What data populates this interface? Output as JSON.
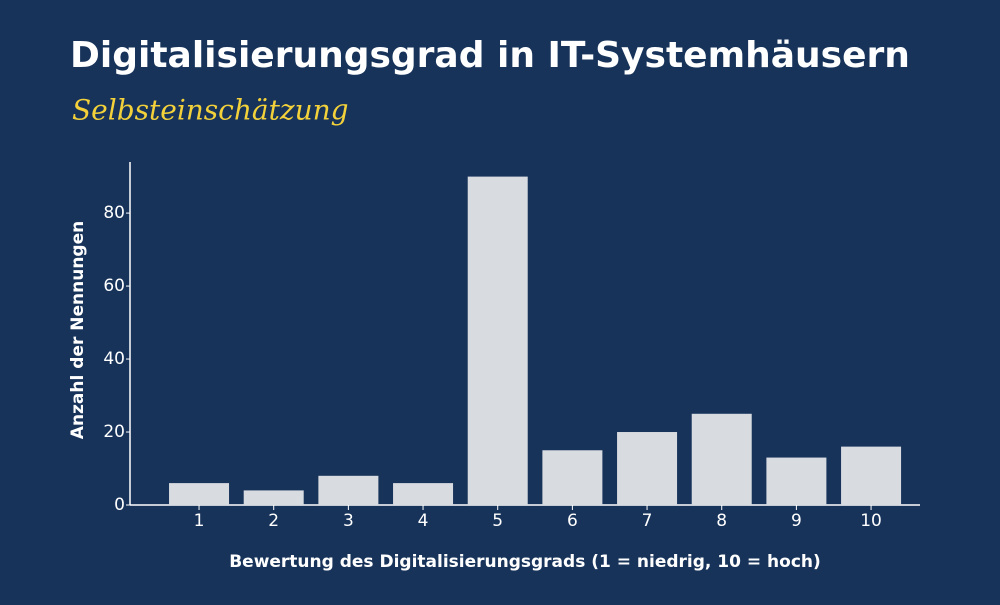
{
  "chart_data": {
    "type": "bar",
    "title": "Digitalisierungsgrad in IT-Systemhäusern",
    "subtitle": "Selbsteinschätzung",
    "x_label": "Bewertung des Digitalisierungsgrads (1 = niedrig, 10 = hoch)",
    "y_label": "Anzahl der Nennungen",
    "categories": [
      "1",
      "2",
      "3",
      "4",
      "5",
      "6",
      "7",
      "8",
      "9",
      "10"
    ],
    "values": [
      6,
      4,
      8,
      6,
      90,
      15,
      20,
      25,
      13,
      16
    ],
    "color": "#d8dbe0",
    "ylim": [
      0,
      94
    ],
    "yticks": [
      0,
      20,
      40,
      60,
      80
    ],
    "grid": false
  }
}
